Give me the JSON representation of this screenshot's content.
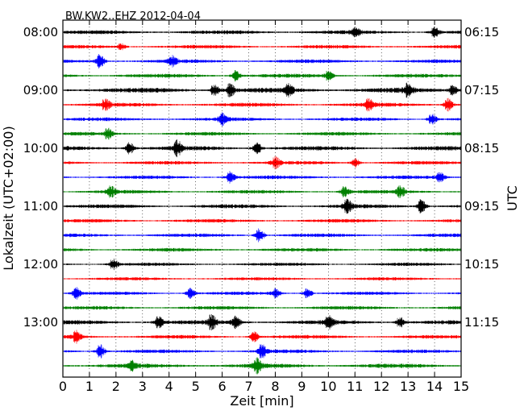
{
  "chart_data": {
    "type": "line",
    "title": "BW.KW2..EHZ 2012-04-04",
    "xlabel": "Zeit  [min]",
    "ylabel_left": "Lokalzeit (UTC+02:00)",
    "ylabel_right": "UTC",
    "xlim": [
      0,
      15
    ],
    "xticks": [
      "0",
      "1",
      "2",
      "3",
      "4",
      "5",
      "6",
      "7",
      "8",
      "9",
      "10",
      "11",
      "12",
      "13",
      "14",
      "15"
    ],
    "grid": "vertical dotted",
    "left_labels": [
      "08:00",
      "09:00",
      "10:00",
      "11:00",
      "12:00",
      "13:00"
    ],
    "right_labels": [
      "06:15",
      "07:15",
      "08:15",
      "09:15",
      "10:15",
      "11:15"
    ],
    "trace_count": 24,
    "trace_interval_min": 15,
    "colors": [
      "#000000",
      "#ff0000",
      "#0000ff",
      "#008000"
    ],
    "base_amplitude": [
      0.55,
      0.5,
      0.5,
      0.55,
      0.7,
      0.55,
      0.5,
      0.5,
      0.6,
      0.5,
      0.5,
      0.5,
      0.55,
      0.5,
      0.5,
      0.5,
      0.45,
      0.45,
      0.45,
      0.5,
      0.6,
      0.5,
      0.5,
      0.6
    ],
    "events": [
      [
        0,
        11.0,
        1.4
      ],
      [
        0,
        14.0,
        1.5
      ],
      [
        1,
        2.2,
        0.9
      ],
      [
        2,
        1.4,
        2.2
      ],
      [
        2,
        4.1,
        1.6
      ],
      [
        3,
        6.5,
        1.6
      ],
      [
        3,
        10.0,
        1.4
      ],
      [
        4,
        5.7,
        1.8
      ],
      [
        4,
        6.3,
        2.0
      ],
      [
        4,
        8.5,
        1.6
      ],
      [
        4,
        13.0,
        1.8
      ],
      [
        4,
        14.7,
        1.6
      ],
      [
        5,
        1.6,
        1.5
      ],
      [
        5,
        11.5,
        1.8
      ],
      [
        5,
        14.5,
        2.0
      ],
      [
        6,
        6.0,
        1.8
      ],
      [
        6,
        13.9,
        1.8
      ],
      [
        7,
        1.7,
        1.6
      ],
      [
        8,
        2.5,
        1.8
      ],
      [
        8,
        4.3,
        2.2
      ],
      [
        8,
        7.3,
        1.8
      ],
      [
        9,
        8.0,
        1.6
      ],
      [
        9,
        11.0,
        1.4
      ],
      [
        10,
        6.3,
        1.8
      ],
      [
        10,
        14.2,
        1.6
      ],
      [
        11,
        1.8,
        1.8
      ],
      [
        11,
        10.6,
        1.6
      ],
      [
        11,
        12.7,
        1.8
      ],
      [
        12,
        10.7,
        2.0
      ],
      [
        12,
        13.5,
        2.2
      ],
      [
        14,
        7.4,
        2.2
      ],
      [
        16,
        1.9,
        1.6
      ],
      [
        18,
        0.5,
        1.8
      ],
      [
        18,
        4.8,
        1.6
      ],
      [
        18,
        8.0,
        1.5
      ],
      [
        18,
        9.2,
        1.5
      ],
      [
        20,
        3.6,
        1.8
      ],
      [
        20,
        5.6,
        2.2
      ],
      [
        20,
        6.5,
        2.0
      ],
      [
        20,
        10.0,
        2.0
      ],
      [
        20,
        12.7,
        1.6
      ],
      [
        21,
        0.5,
        1.8
      ],
      [
        21,
        7.2,
        1.6
      ],
      [
        22,
        1.4,
        2.2
      ],
      [
        22,
        7.5,
        2.2
      ],
      [
        23,
        7.3,
        2.2
      ],
      [
        23,
        2.6,
        1.4
      ]
    ]
  }
}
